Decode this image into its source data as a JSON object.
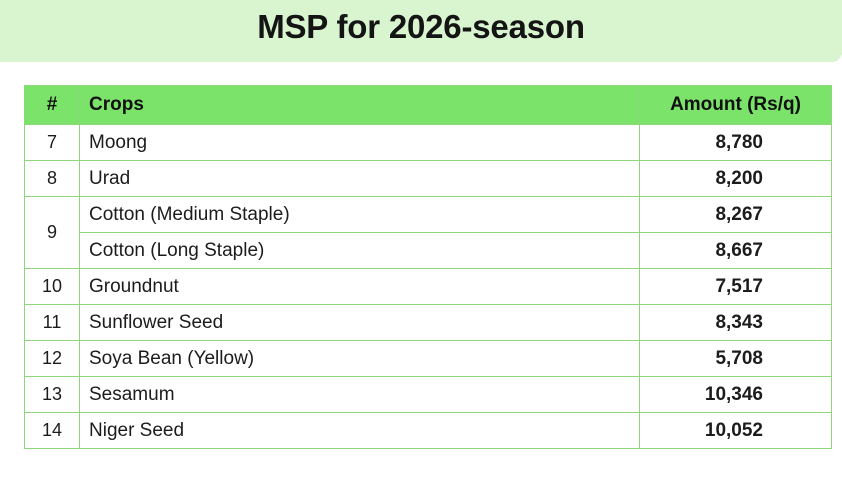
{
  "title": "MSP for 2026-season",
  "table": {
    "headers": {
      "number": "#",
      "crop": "Crops",
      "amount": "Amount (Rs/q)"
    },
    "rows": [
      {
        "num": "7",
        "crop": "Moong",
        "amount": "8,780"
      },
      {
        "num": "8",
        "crop": "Urad",
        "amount": "8,200"
      },
      {
        "num": "9",
        "crop": "Cotton (Medium Staple)",
        "amount": "8,267"
      },
      {
        "num": "",
        "crop": "Cotton (Long Staple)",
        "amount": "8,667"
      },
      {
        "num": "10",
        "crop": "Groundnut",
        "amount": "7,517"
      },
      {
        "num": "11",
        "crop": "Sunflower Seed",
        "amount": "8,343"
      },
      {
        "num": "12",
        "crop": "Soya Bean (Yellow)",
        "amount": "5,708"
      },
      {
        "num": "13",
        "crop": "Sesamum",
        "amount": "10,346"
      },
      {
        "num": "14",
        "crop": "Niger Seed",
        "amount": "10,052"
      }
    ]
  },
  "colors": {
    "title_band": "#d9f5cf",
    "header_fill": "#7ce36a",
    "grid_line": "#8ed77f"
  }
}
